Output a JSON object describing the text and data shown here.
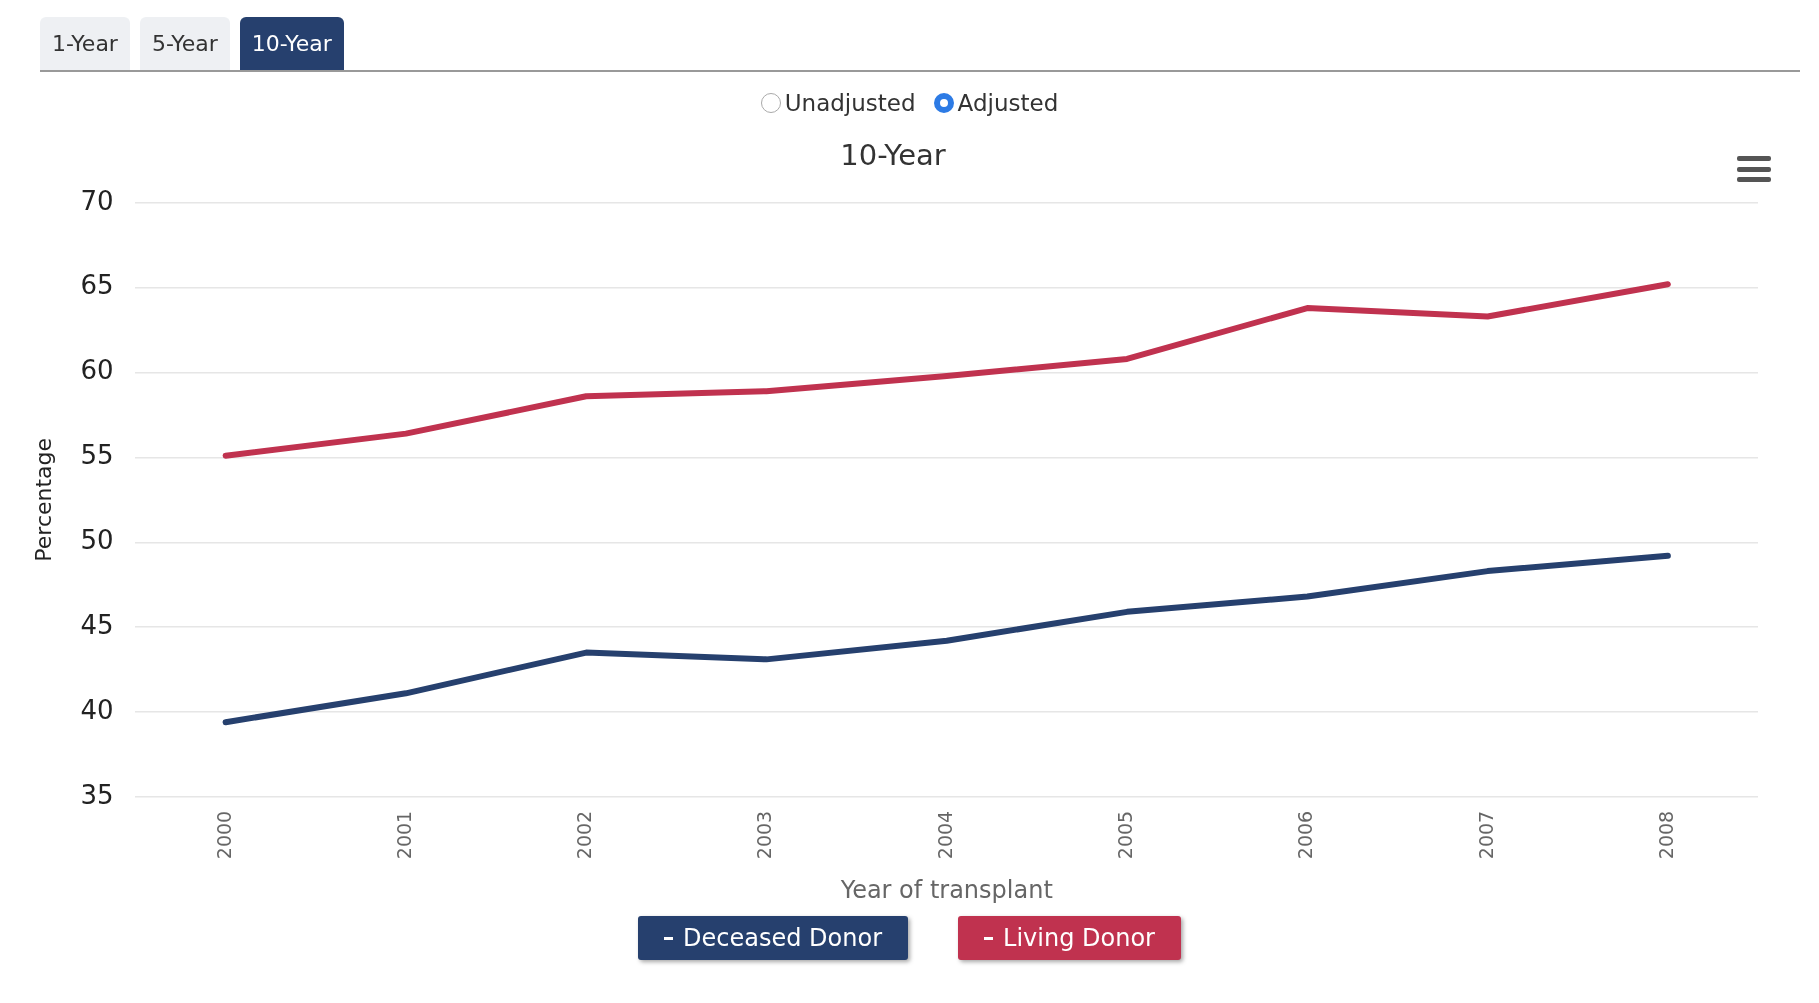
{
  "chart_data": {
    "type": "line",
    "title": "10-Year",
    "xlabel": "Year of transplant",
    "ylabel": "Percentage",
    "categories": [
      "2000",
      "2001",
      "2002",
      "2003",
      "2004",
      "2005",
      "2006",
      "2007",
      "2008"
    ],
    "series": [
      {
        "name": "Deceased Donor",
        "color": "#26406e",
        "values": [
          39.4,
          41.1,
          43.5,
          43.1,
          44.2,
          45.9,
          46.8,
          48.3,
          49.2
        ]
      },
      {
        "name": "Living Donor",
        "color": "#c0324f",
        "values": [
          55.1,
          56.4,
          58.6,
          58.9,
          59.8,
          60.8,
          63.8,
          63.3,
          65.2
        ]
      }
    ],
    "ylim": [
      35,
      70
    ],
    "yticks": [
      35,
      40,
      45,
      50,
      55,
      60,
      65,
      70
    ],
    "grid": "y",
    "legend": "bottom",
    "marker": "none",
    "line_style": "solid",
    "annotations": [
      "1-Year",
      "5-Year",
      "10-Year",
      "Unadjusted",
      "Adjusted"
    ]
  }
}
